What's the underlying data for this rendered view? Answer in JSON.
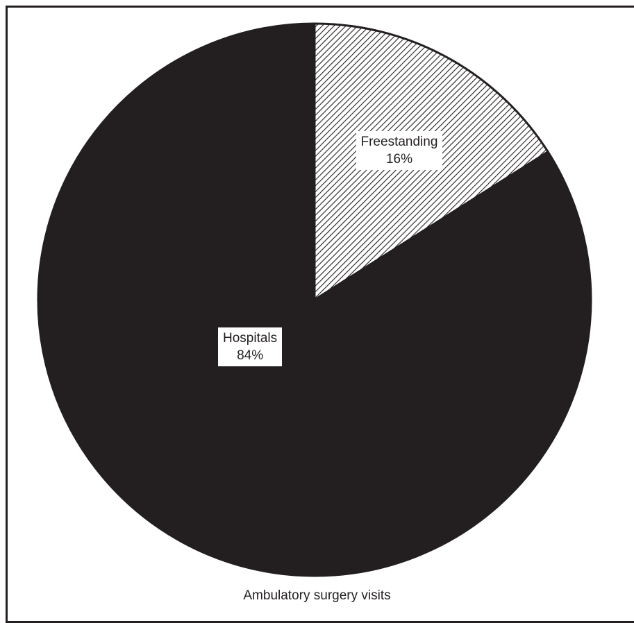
{
  "chart_data": {
    "type": "pie",
    "title": "",
    "caption": "Ambulatory surgery visits",
    "slices": [
      {
        "label": "Freestanding",
        "value": 16,
        "value_label": "16%",
        "fill": "hatched",
        "color": "#231f20"
      },
      {
        "label": "Hospitals",
        "value": 84,
        "value_label": "84%",
        "fill": "solid",
        "color": "#231f20"
      }
    ],
    "start_angle": "12 o'clock",
    "direction": "clockwise",
    "legend": "none"
  }
}
